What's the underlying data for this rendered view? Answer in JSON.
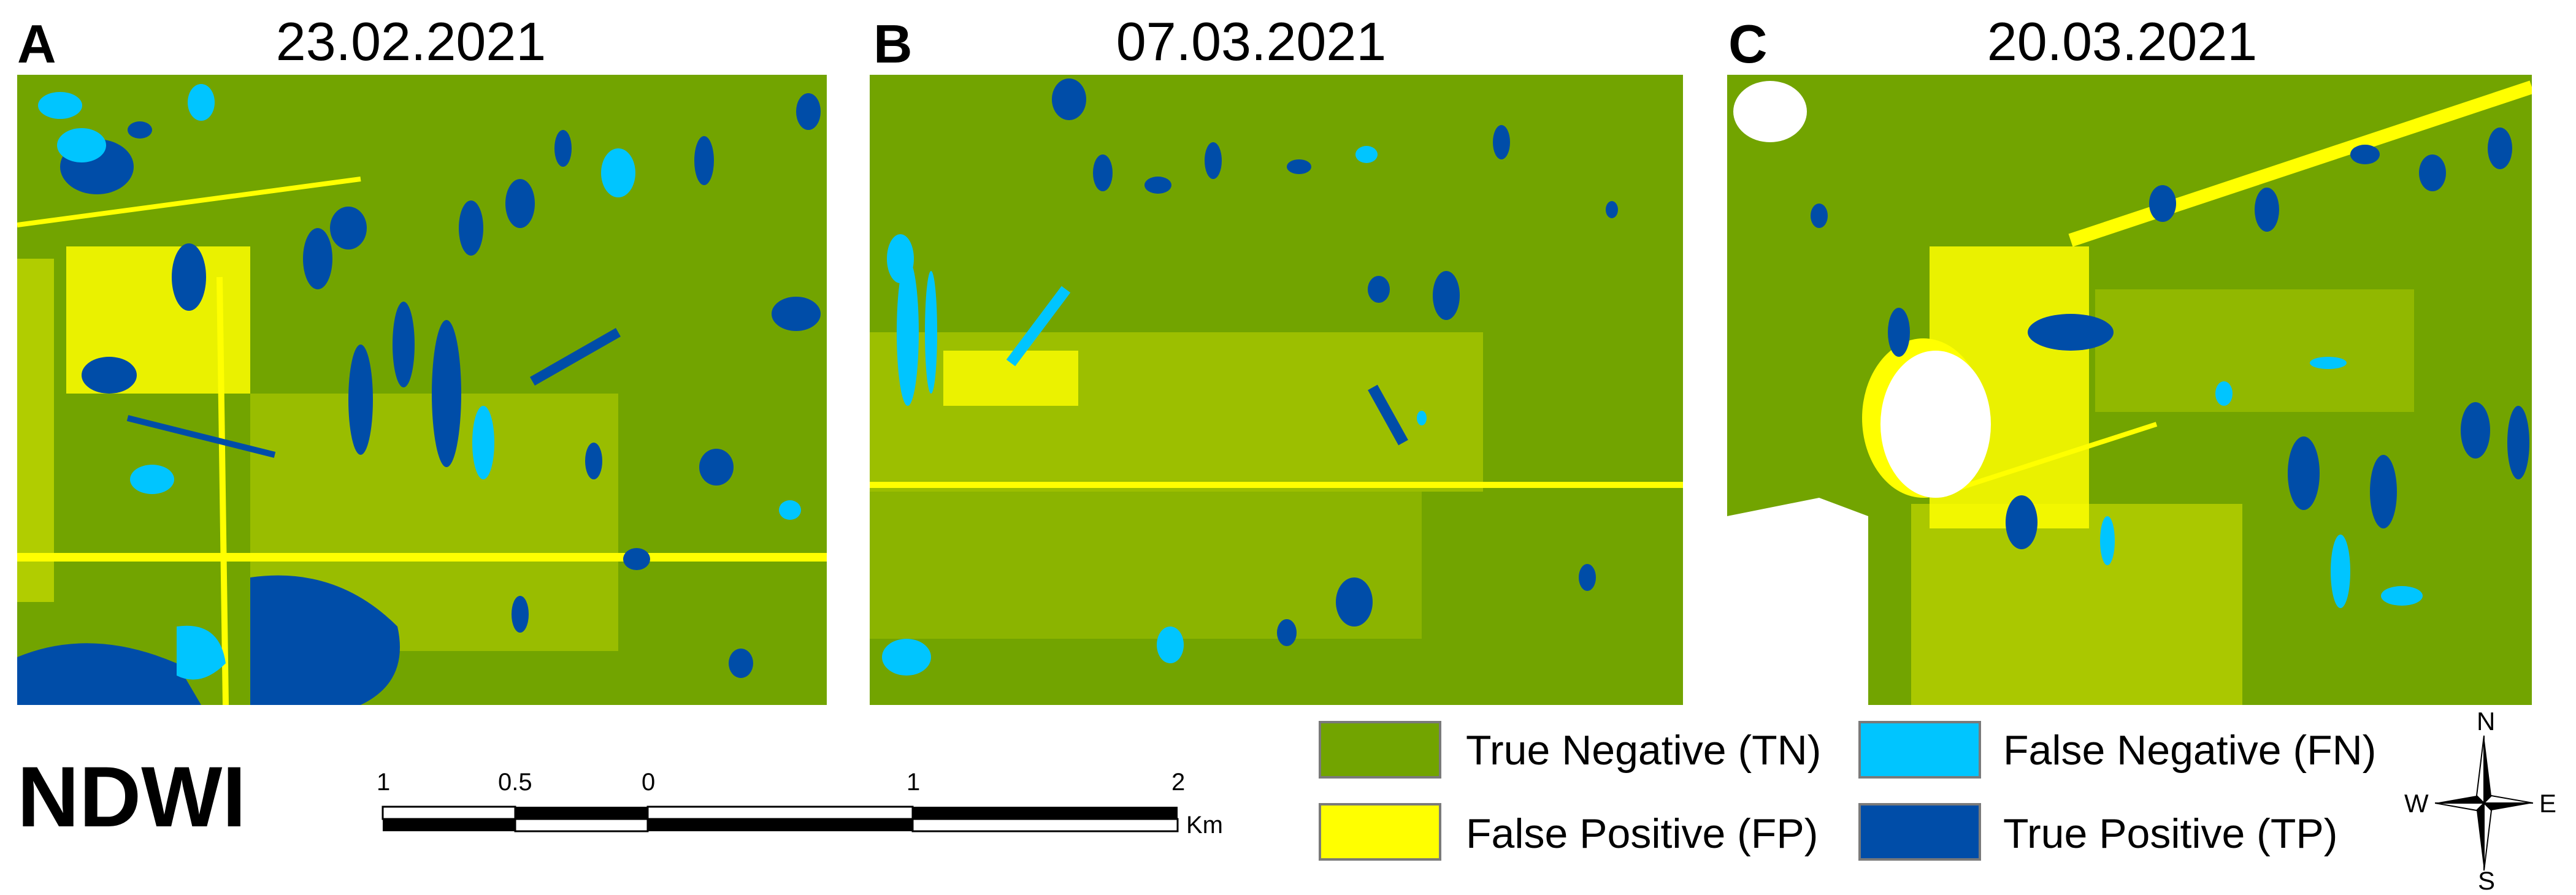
{
  "index_label": "NDWI",
  "panels": [
    {
      "letter": "A",
      "date": "23.02.2021"
    },
    {
      "letter": "B",
      "date": "07.03.2021"
    },
    {
      "letter": "C",
      "date": "20.03.2021"
    }
  ],
  "legend": [
    {
      "label": "True Negative (TN)",
      "color": "#72a400"
    },
    {
      "label": "False Negative (FN)",
      "color": "#00c5ff"
    },
    {
      "label": "False Positive (FP)",
      "color": "#ffff00"
    },
    {
      "label": "True Positive (TP)",
      "color": "#004da8"
    }
  ],
  "scale_bar": {
    "labels": [
      "1",
      "0.5",
      "0",
      "1",
      "2"
    ],
    "unit": "Km"
  },
  "compass": {
    "n": "N",
    "s": "S",
    "e": "E",
    "w": "W"
  }
}
